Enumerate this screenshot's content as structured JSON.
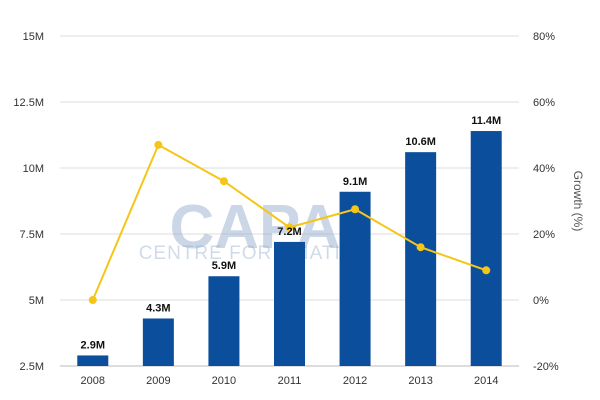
{
  "chart_data": {
    "type": "bar",
    "categories": [
      "2008",
      "2009",
      "2010",
      "2011",
      "2012",
      "2013",
      "2014"
    ],
    "series": [
      {
        "type": "bar",
        "values": [
          2.9,
          4.3,
          5.9,
          7.2,
          9.1,
          10.6,
          11.4
        ],
        "data_labels": [
          "2.9M",
          "4.3M",
          "5.9M",
          "7.2M",
          "9.1M",
          "10.6M",
          "11.4M"
        ],
        "color": "#0b4f9c"
      },
      {
        "type": "line",
        "axis": "right",
        "values": [
          0,
          47,
          36,
          22,
          27.5,
          16,
          9
        ],
        "color": "#f5c518"
      }
    ],
    "y_left": {
      "ylim": [
        2.5,
        15
      ],
      "tick_values": [
        2.5,
        5,
        7.5,
        10,
        12.5,
        15
      ],
      "tick_labels": [
        "2.5M",
        "5M",
        "7.5M",
        "10M",
        "12.5M",
        "15M"
      ]
    },
    "y_right": {
      "label": "Growth (%)",
      "ylim": [
        -20,
        80
      ],
      "tick_values": [
        -20,
        0,
        20,
        40,
        60,
        80
      ],
      "tick_labels": [
        "-20%",
        "0%",
        "20%",
        "40%",
        "60%",
        "80%"
      ]
    },
    "xlabel": "",
    "grid": true,
    "legend": "none",
    "watermark": {
      "main": "CAPA",
      "sub": "CENTRE FOR AVIATION"
    }
  }
}
